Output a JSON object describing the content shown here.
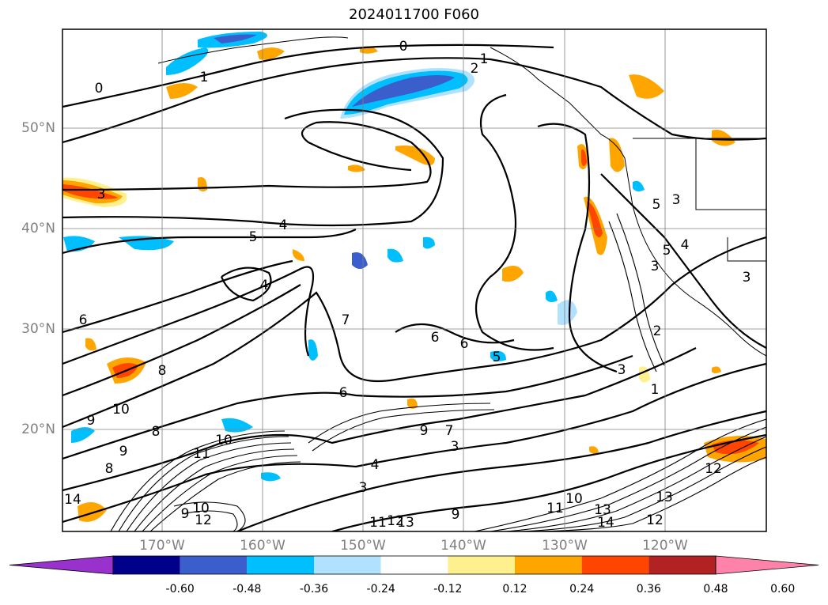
{
  "title": "2024011700 F060",
  "lat_labels": [
    "50°N",
    "40°N",
    "30°N",
    "20°N"
  ],
  "lon_labels": [
    "170°W",
    "160°W",
    "150°W",
    "140°W",
    "130°W",
    "120°W"
  ],
  "colorbar": {
    "ticks": [
      "-0.60",
      "-0.48",
      "-0.36",
      "-0.24",
      "-0.12",
      "0.12",
      "0.24",
      "0.36",
      "0.48",
      "0.60"
    ],
    "colors": [
      "#9932cc",
      "#00008b",
      "#3a5fcd",
      "#00bfff",
      "#b0e2ff",
      "#ffffff",
      "#fff08f",
      "#ffa500",
      "#ff4500",
      "#b22222",
      "#ff82ab"
    ]
  },
  "contour_labels": [
    "0",
    "0",
    "1",
    "1",
    "2",
    "3",
    "4",
    "5",
    "4",
    "6",
    "7",
    "6",
    "6",
    "5",
    "8",
    "6",
    "9",
    "10",
    "9",
    "8",
    "10",
    "9",
    "8",
    "7",
    "3",
    "4",
    "3",
    "9",
    "11",
    "12",
    "13",
    "11",
    "10",
    "13",
    "12",
    "14",
    "13",
    "2",
    "1",
    "3",
    "5",
    "3",
    "3",
    "5",
    "3",
    "4",
    "14",
    "12",
    "12",
    "11",
    "10",
    "9"
  ]
}
